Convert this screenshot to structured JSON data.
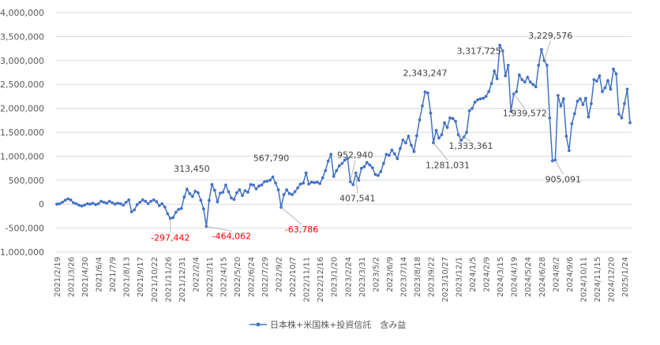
{
  "chart_data": {
    "type": "line",
    "title": "",
    "xlabel": "",
    "ylabel": "",
    "ylim": [
      -1000000,
      4000000
    ],
    "grid": "horizontal",
    "legend": "bottom-center",
    "colors": {
      "series": "#4472C4",
      "negative_label": "#FF0000",
      "label": "#404040",
      "grid": "#D9D9D9",
      "axis_text": "#595959"
    },
    "y_ticks": [
      -1000000,
      -500000,
      0,
      500000,
      1000000,
      1500000,
      2000000,
      2500000,
      3000000,
      3500000,
      4000000
    ],
    "y_tick_labels": [
      "-1,000,000",
      "-500,000",
      "0",
      "500,000",
      "1,000,000",
      "1,500,000",
      "2,000,000",
      "2,500,000",
      "3,000,000",
      "3,500,000",
      "4,000,000"
    ],
    "x_tick_labels": [
      "2021/2/19",
      "2021/3/26",
      "2021/4/30",
      "2021/6/4",
      "2021/7/9",
      "2021/8/13",
      "2021/9/17",
      "2021/10/22",
      "2021/11/26",
      "2021/12/31",
      "2022/2/4",
      "2022/3/11",
      "2022/4/15",
      "2022/5/20",
      "2022/6/24",
      "2022/7/29",
      "2022/9/2",
      "2022/10/7",
      "2022/11/11",
      "2022/12/16",
      "2023/1/20",
      "2023/2/24",
      "2023/3/31",
      "2023/5/2",
      "2023/6/9",
      "2023/7/14",
      "2023/8/18",
      "2023/9/22",
      "2023/10/27",
      "2023/12/1",
      "2024/1/5",
      "2024/2/9",
      "2024/3/15",
      "2024/4/19",
      "2024/5/24",
      "2024/6/28",
      "2024/8/2",
      "2024/9/6",
      "2024/10/11",
      "2024/11/15",
      "2024/12/20",
      "2025/1/24"
    ],
    "series": [
      {
        "name": "日本株+米国株+投資信託　含み益",
        "values": [
          0,
          10000,
          40000,
          80000,
          110000,
          90000,
          30000,
          10000,
          -20000,
          -40000,
          -20000,
          10000,
          0,
          20000,
          -10000,
          10000,
          60000,
          40000,
          20000,
          60000,
          30000,
          0,
          20000,
          10000,
          -20000,
          40000,
          90000,
          -160000,
          -120000,
          -10000,
          40000,
          90000,
          60000,
          10000,
          60000,
          90000,
          50000,
          -30000,
          10000,
          -60000,
          -200000,
          -297442,
          -280000,
          -170000,
          -110000,
          -90000,
          150000,
          313450,
          220000,
          160000,
          270000,
          240000,
          80000,
          -100000,
          -464062,
          80000,
          410000,
          290000,
          50000,
          230000,
          250000,
          400000,
          260000,
          130000,
          100000,
          240000,
          300000,
          180000,
          280000,
          250000,
          410000,
          400000,
          320000,
          380000,
          400000,
          470000,
          480000,
          500000,
          567790,
          440000,
          300000,
          -63786,
          200000,
          300000,
          220000,
          200000,
          260000,
          340000,
          420000,
          440000,
          650000,
          420000,
          460000,
          450000,
          460000,
          430000,
          550000,
          700000,
          900000,
          1040000,
          580000,
          700000,
          800000,
          850000,
          920000,
          952940,
          470000,
          407541,
          650000,
          500000,
          750000,
          780000,
          870000,
          820000,
          760000,
          620000,
          600000,
          680000,
          850000,
          1040000,
          1020000,
          1130000,
          1050000,
          950000,
          1160000,
          1340000,
          1280000,
          1420000,
          1230000,
          1100000,
          1430000,
          1760000,
          2050000,
          2343247,
          2320000,
          1900000,
          1281031,
          1540000,
          1380000,
          1450000,
          1700000,
          1600000,
          1800000,
          1790000,
          1730000,
          1450000,
          1333361,
          1400000,
          1500000,
          1950000,
          2000000,
          2130000,
          2180000,
          2200000,
          2210000,
          2250000,
          2350000,
          2520000,
          2780000,
          2620000,
          3317725,
          3200000,
          2680000,
          2900000,
          1939572,
          2300000,
          2350000,
          2700000,
          2600000,
          2550000,
          2650000,
          2550000,
          2500000,
          2450000,
          2900000,
          3229576,
          3000000,
          2900000,
          1800000,
          905091,
          920000,
          2270000,
          2050000,
          2200000,
          1420000,
          1120000,
          1680000,
          1890000,
          2150000,
          2200000,
          2080000,
          2210000,
          1820000,
          2100000,
          2600000,
          2570000,
          2680000,
          2350000,
          2430000,
          2580000,
          2400000,
          2820000,
          2720000,
          1880000,
          1800000,
          2100000,
          2400000,
          1700000
        ]
      }
    ],
    "annotations": [
      {
        "index": 41,
        "label": "-297,442",
        "negative": true,
        "dx": 0,
        "dy": 28
      },
      {
        "index": 47,
        "label": "313,450",
        "negative": false,
        "dx": 6,
        "dy": -22
      },
      {
        "index": 54,
        "label": "-464,062",
        "negative": true,
        "dx": 32,
        "dy": 16
      },
      {
        "index": 78,
        "label": "567,790",
        "negative": false,
        "dx": -2,
        "dy": -20
      },
      {
        "index": 81,
        "label": "-63,786",
        "negative": true,
        "dx": 26,
        "dy": 32
      },
      {
        "index": 106,
        "label": "952,940",
        "negative": false,
        "dx": 6,
        "dy": -30
      },
      {
        "index": 108,
        "label": "407,541",
        "negative": false,
        "dx": 2,
        "dy": 36
      },
      {
        "index": 133,
        "label": "2,343,247",
        "negative": false,
        "dx": 0,
        "dy": -20
      },
      {
        "index": 136,
        "label": "1,281,031",
        "negative": false,
        "dx": 18,
        "dy": 32
      },
      {
        "index": 145,
        "label": "1,333,361",
        "negative": false,
        "dx": 16,
        "dy": 18
      },
      {
        "index": 161,
        "label": "3,317,725",
        "negative": false,
        "dx": -30,
        "dy": 4
      },
      {
        "index": 165,
        "label": "1,939,572",
        "negative": false,
        "dx": 14,
        "dy": 28
      },
      {
        "index": 176,
        "label": "3,229,576",
        "negative": false,
        "dx": 8,
        "dy": -28
      },
      {
        "index": 180,
        "label": "905,091",
        "negative": false,
        "dx": 10,
        "dy": 28
      }
    ]
  }
}
